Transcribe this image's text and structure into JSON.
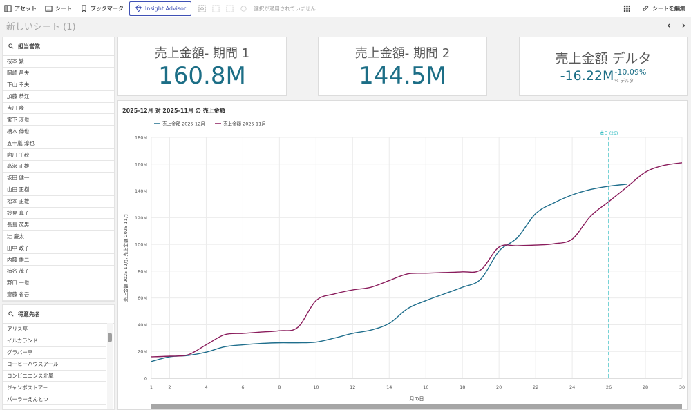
{
  "toolbar": {
    "asset_label": "アセット",
    "sheet_label": "シート",
    "bookmark_label": "ブックマーク",
    "insight_label": "Insight Advisor",
    "selection_text": "選択が適用されていません",
    "edit_label": "シートを編集"
  },
  "sheet": {
    "title": "新しいシート (1)",
    "prev": "‹",
    "next": "›"
  },
  "filters": {
    "rep": {
      "title": "担当営業",
      "items": [
        "桜本 繁",
        "岡崎 昌夫",
        "下山 幸夫",
        "加藤 恭江",
        "吉川 隆",
        "宮下 淳也",
        "楠本 伸也",
        "五十嵐 淳也",
        "向川 千秋",
        "高沢 正雄",
        "坂田 健一",
        "山田 正樹",
        "松本 正雄",
        "鈴見 真子",
        "長島 茂男",
        "辻 慶太",
        "田中 政子",
        "内藤 雄二",
        "楠名 茂子",
        "野口 一也",
        "齋藤 省吾"
      ]
    },
    "customer": {
      "title": "得意先名",
      "items": [
        "アリス亭",
        "イルカランド",
        "グラバー亭",
        "コーヒーハウスアール",
        "コンビニエンス北風",
        "ジャンボストアー",
        "パーラーえんとつ",
        "ヒスケ バーウィス"
      ]
    }
  },
  "kpis": {
    "period1": {
      "title": "売上金額- 期間 1",
      "value": "160.8M"
    },
    "period2": {
      "title": "売上金額- 期間 2",
      "value": "144.5M"
    },
    "delta": {
      "title": "売上金額 デルタ",
      "value": "-16.22M",
      "pct": "-10.09%",
      "label": "% デルタ"
    }
  },
  "colors": {
    "accent": "#1c6e86",
    "series_dec": "#1f6e8c",
    "series_nov": "#8a1c5c",
    "today": "#16b3b8",
    "toolbar_accent": "#3f51b5"
  },
  "chart_data": {
    "type": "line",
    "title": "2025-12月 対 2025-11月 の 売上金額",
    "xlabel": "月の日",
    "ylabel": "売上金額 2025-12月, 売上金額 2025-11月",
    "ylim": [
      0,
      180
    ],
    "xlim": [
      1,
      30
    ],
    "yticks": [
      "0",
      "20M",
      "40M",
      "60M",
      "80M",
      "100M",
      "120M",
      "140M",
      "160M",
      "180M"
    ],
    "xticks": [
      "1",
      "2",
      "4",
      "6",
      "8",
      "10",
      "12",
      "14",
      "16",
      "18",
      "20",
      "22",
      "24",
      "26",
      "28",
      "30"
    ],
    "grid": true,
    "legend": "top-left",
    "reference_line": {
      "x": 26,
      "label": "本日 (26)"
    },
    "series": [
      {
        "name": "売上金額 2025-12月",
        "x": [
          1,
          2,
          3,
          4,
          5,
          6,
          7,
          8,
          9,
          10,
          11,
          12,
          13,
          14,
          15,
          16,
          17,
          18,
          19,
          20,
          21,
          22,
          23,
          24,
          25,
          26,
          27
        ],
        "values": [
          12.5,
          16,
          17,
          19.5,
          23.5,
          25,
          26,
          26.5,
          26.5,
          27,
          30,
          33.5,
          36,
          41,
          52,
          58,
          63,
          68,
          74,
          95,
          105,
          123,
          131,
          137,
          141,
          143.5,
          145
        ]
      },
      {
        "name": "売上金額 2025-11月",
        "x": [
          1,
          2,
          3,
          4,
          5,
          6,
          7,
          8,
          9,
          10,
          11,
          12,
          13,
          14,
          15,
          16,
          17,
          18,
          19,
          20,
          21,
          22,
          23,
          24,
          25,
          26,
          27,
          28,
          29,
          30
        ],
        "values": [
          16,
          16.5,
          17.5,
          25,
          32.5,
          33.5,
          34.5,
          35.5,
          38,
          58,
          63,
          66,
          68,
          73,
          78,
          78.5,
          79,
          79.5,
          81,
          98,
          99,
          99.5,
          100.5,
          104,
          121,
          132,
          143,
          154,
          159,
          161
        ]
      }
    ]
  }
}
